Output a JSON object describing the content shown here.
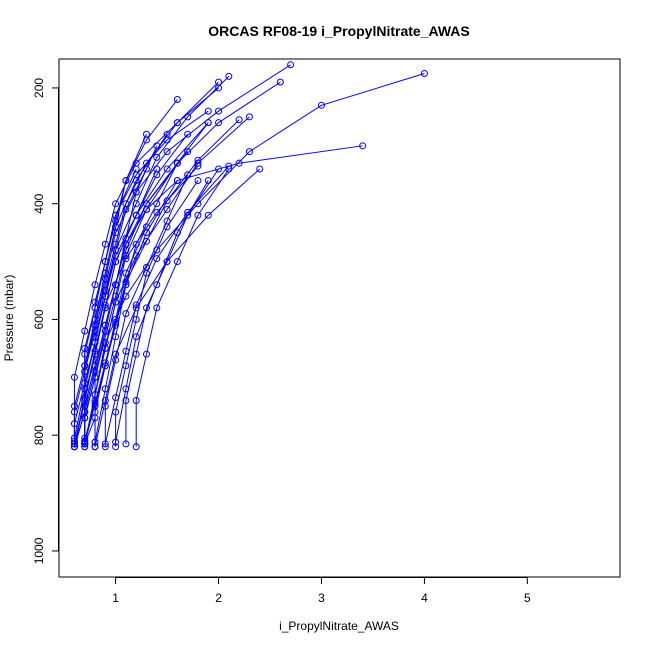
{
  "chart_data": {
    "type": "line",
    "title": "ORCAS RF08-19 i_PropylNitrate_AWAS",
    "xlabel": "i_PropylNitrate_AWAS",
    "ylabel": "Pressure (mbar)",
    "xlim": [
      0.45,
      5.9
    ],
    "ylim": [
      1045,
      150
    ],
    "y_reversed": true,
    "x_ticks": [
      1,
      2,
      3,
      4,
      5
    ],
    "y_ticks": [
      200,
      400,
      600,
      800,
      1000
    ],
    "grid": false,
    "legend": "none",
    "color": "#0000ff",
    "series": [
      {
        "x": [
          0.6,
          0.7,
          0.8,
          0.9,
          1.0,
          1.1,
          1.3,
          1.6,
          2.2,
          3.4
        ],
        "y": [
          820,
          760,
          690,
          610,
          540,
          470,
          410,
          360,
          330,
          300
        ]
      },
      {
        "x": [
          0.7,
          0.8,
          0.9,
          1.1,
          1.4,
          1.8,
          2.3,
          3.0,
          4.0
        ],
        "y": [
          815,
          730,
          640,
          560,
          480,
          400,
          310,
          230,
          175
        ]
      },
      {
        "x": [
          0.6,
          0.6,
          0.7,
          0.8,
          0.9,
          1.0,
          1.2,
          1.6,
          2.0
        ],
        "y": [
          810,
          700,
          620,
          540,
          470,
          400,
          330,
          260,
          200
        ]
      },
      {
        "x": [
          0.7,
          0.7,
          0.8,
          0.8,
          0.9,
          1.0,
          1.1,
          1.3
        ],
        "y": [
          820,
          750,
          680,
          600,
          520,
          440,
          360,
          280
        ]
      },
      {
        "x": [
          0.6,
          0.7,
          0.7,
          0.8,
          0.9,
          1.0,
          1.2,
          1.5,
          1.9
        ],
        "y": [
          805,
          720,
          650,
          580,
          500,
          420,
          350,
          290,
          240
        ]
      },
      {
        "x": [
          0.7,
          0.8,
          0.8,
          0.9,
          1.0,
          1.1,
          1.3,
          1.7
        ],
        "y": [
          815,
          770,
          700,
          630,
          560,
          480,
          400,
          310
        ]
      },
      {
        "x": [
          0.8,
          0.8,
          0.9,
          1.0,
          1.1,
          1.3,
          1.6
        ],
        "y": [
          812,
          730,
          650,
          570,
          490,
          410,
          330
        ]
      },
      {
        "x": [
          0.6,
          0.7,
          0.7,
          0.8,
          0.9,
          1.0,
          1.2,
          1.5,
          2.0,
          2.7
        ],
        "y": [
          820,
          760,
          690,
          610,
          530,
          450,
          380,
          310,
          240,
          160
        ]
      },
      {
        "x": [
          0.7,
          0.7,
          0.8,
          0.9,
          1.0,
          1.2,
          1.4
        ],
        "y": [
          810,
          740,
          660,
          580,
          500,
          420,
          340
        ]
      },
      {
        "x": [
          1.0,
          1.0,
          1.1,
          1.2,
          1.3,
          1.5,
          1.8
        ],
        "y": [
          820,
          760,
          680,
          600,
          520,
          440,
          360
        ]
      },
      {
        "x": [
          0.7,
          0.8,
          0.9,
          1.0,
          1.1,
          1.3,
          1.5,
          1.8,
          2.2
        ],
        "y": [
          815,
          745,
          675,
          605,
          535,
          465,
          395,
          325,
          255
        ]
      },
      {
        "x": [
          0.6,
          0.6,
          0.7,
          0.8,
          0.8,
          0.9,
          1.0,
          1.1,
          1.3,
          1.6
        ],
        "y": [
          820,
          780,
          710,
          640,
          570,
          500,
          430,
          360,
          290,
          220
        ]
      },
      {
        "x": [
          0.8,
          0.9,
          1.0,
          1.2,
          1.5,
          1.9,
          2.4
        ],
        "y": [
          820,
          740,
          660,
          580,
          500,
          420,
          340
        ]
      },
      {
        "x": [
          0.7,
          0.7,
          0.8,
          0.9,
          1.0,
          1.1,
          1.2,
          1.4
        ],
        "y": [
          812,
          770,
          700,
          620,
          540,
          460,
          380,
          300
        ]
      },
      {
        "x": [
          0.6,
          0.7,
          0.8,
          0.9,
          1.1,
          1.4,
          1.8
        ],
        "y": [
          815,
          735,
          655,
          575,
          495,
          415,
          335
        ]
      },
      {
        "x": [
          0.9,
          0.9,
          1.0,
          1.1,
          1.3,
          1.5,
          1.7
        ],
        "y": [
          820,
          750,
          670,
          590,
          510,
          430,
          350
        ]
      },
      {
        "x": [
          0.7,
          0.7,
          0.8,
          0.9,
          1.0,
          1.2,
          1.4,
          1.7,
          2.1
        ],
        "y": [
          805,
          720,
          640,
          560,
          480,
          400,
          320,
          250,
          180
        ]
      },
      {
        "x": [
          0.6,
          0.7,
          0.7,
          0.8,
          0.9,
          1.0,
          1.2,
          1.5
        ],
        "y": [
          820,
          760,
          680,
          600,
          520,
          440,
          360,
          280
        ]
      },
      {
        "x": [
          1.1,
          1.1,
          1.2,
          1.3,
          1.5,
          1.7,
          2.0
        ],
        "y": [
          815,
          740,
          660,
          580,
          500,
          420,
          340
        ]
      },
      {
        "x": [
          0.8,
          0.8,
          0.9,
          1.0,
          1.1,
          1.2,
          1.4,
          1.6,
          1.9
        ],
        "y": [
          820,
          750,
          680,
          610,
          540,
          470,
          400,
          330,
          260
        ]
      },
      {
        "x": [
          0.7,
          0.8,
          0.8,
          0.9,
          1.0,
          1.2,
          1.5,
          1.9
        ],
        "y": [
          810,
          740,
          660,
          580,
          500,
          420,
          340,
          260
        ]
      },
      {
        "x": [
          0.6,
          0.6,
          0.7,
          0.8,
          0.9,
          1.0,
          1.1,
          1.3
        ],
        "y": [
          815,
          760,
          690,
          620,
          550,
          480,
          410,
          340
        ]
      },
      {
        "x": [
          1.2,
          1.2,
          1.3,
          1.4,
          1.6,
          1.8,
          2.1
        ],
        "y": [
          820,
          740,
          660,
          580,
          500,
          420,
          340
        ]
      },
      {
        "x": [
          0.7,
          0.7,
          0.8,
          0.9,
          1.0,
          1.1,
          1.3,
          1.6,
          2.0,
          2.6
        ],
        "y": [
          815,
          750,
          680,
          610,
          540,
          470,
          400,
          330,
          260,
          190
        ]
      },
      {
        "x": [
          0.8,
          0.9,
          1.0,
          1.1,
          1.3,
          1.6
        ],
        "y": [
          812,
          720,
          630,
          540,
          450,
          360
        ]
      },
      {
        "x": [
          0.6,
          0.7,
          0.7,
          0.8,
          0.9,
          1.0,
          1.2
        ],
        "y": [
          820,
          740,
          660,
          580,
          500,
          420,
          340
        ]
      },
      {
        "x": [
          0.9,
          1.0,
          1.1,
          1.2,
          1.4,
          1.7,
          2.1
        ],
        "y": [
          815,
          735,
          655,
          575,
          495,
          415,
          335
        ]
      },
      {
        "x": [
          0.7,
          0.7,
          0.8,
          0.8,
          0.9,
          1.0,
          1.2,
          1.4,
          1.7
        ],
        "y": [
          820,
          770,
          700,
          630,
          560,
          490,
          420,
          350,
          280
        ]
      },
      {
        "x": [
          1.0,
          1.1,
          1.2,
          1.4,
          1.6,
          1.9
        ],
        "y": [
          812,
          720,
          630,
          540,
          450,
          360
        ]
      },
      {
        "x": [
          0.6,
          0.6,
          0.7,
          0.8,
          0.9,
          1.0,
          1.1,
          1.3,
          1.6,
          2.0
        ],
        "y": [
          815,
          750,
          680,
          610,
          540,
          470,
          400,
          330,
          260,
          190
        ]
      },
      {
        "x": [
          0.8,
          0.8,
          0.9,
          1.0,
          1.1,
          1.3
        ],
        "y": [
          820,
          760,
          680,
          600,
          520,
          440
        ]
      },
      {
        "x": [
          0.7,
          0.8,
          0.9,
          1.0,
          1.2,
          1.5,
          1.8,
          2.3
        ],
        "y": [
          815,
          730,
          650,
          570,
          490,
          410,
          330,
          250
        ]
      }
    ]
  }
}
